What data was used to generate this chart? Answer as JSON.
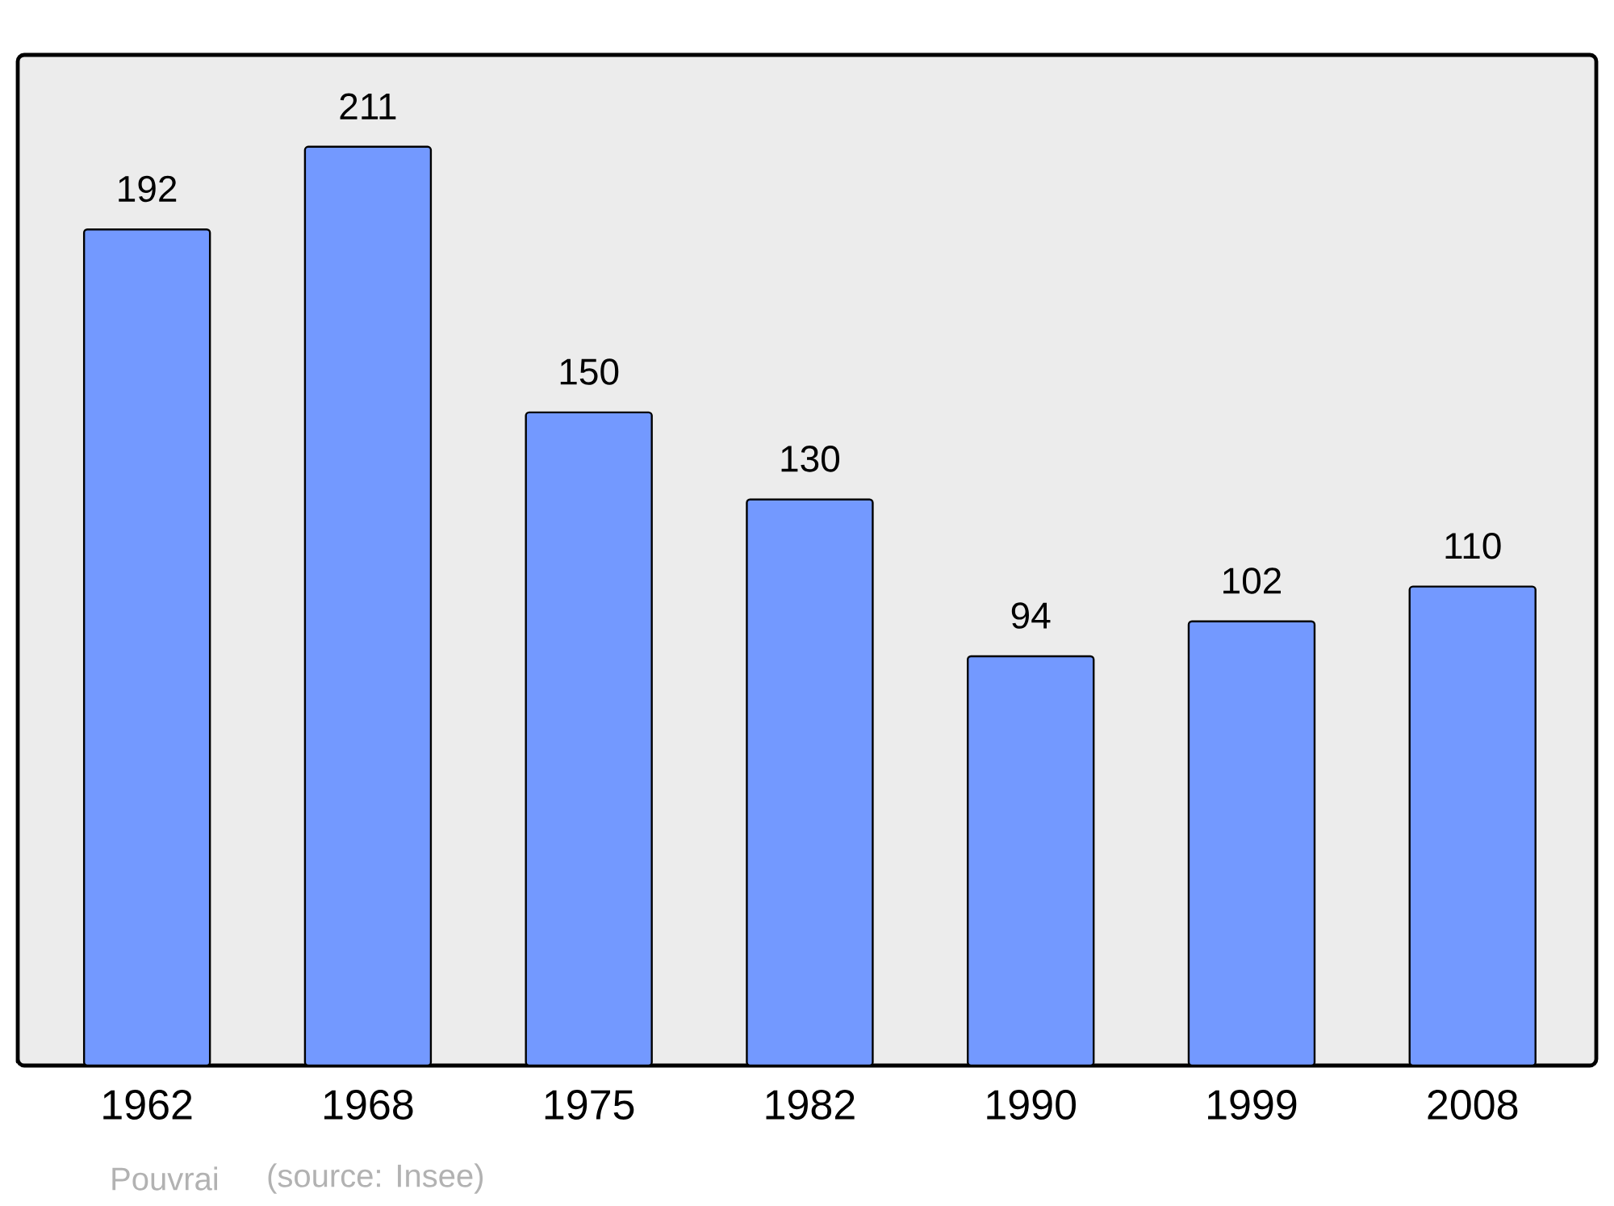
{
  "chart_data": {
    "type": "bar",
    "categories": [
      "1962",
      "1968",
      "1975",
      "1982",
      "1990",
      "1999",
      "2008"
    ],
    "values": [
      192,
      211,
      150,
      130,
      94,
      102,
      110
    ],
    "color": "#7399ff",
    "data_labels": true,
    "annotations": [
      "Pouvrai",
      "(source: Insee)"
    ]
  }
}
